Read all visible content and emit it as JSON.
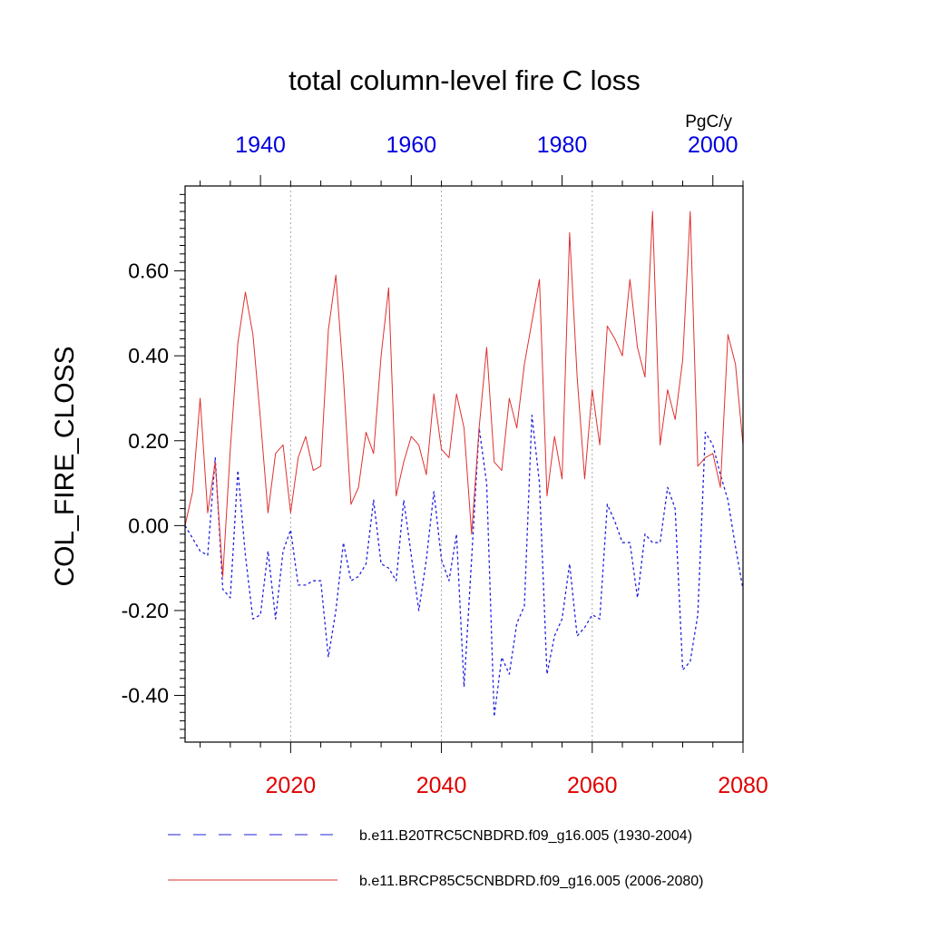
{
  "chart_data": {
    "type": "line",
    "title": "total column-level fire C loss",
    "units": "PgC/y",
    "ylabel": "COL_FIRE_CLOSS",
    "ylim": [
      -0.51,
      0.8
    ],
    "yticks": [
      -0.4,
      -0.2,
      0.0,
      0.2,
      0.4,
      0.6
    ],
    "ytick_labels": [
      "-0.40",
      "-0.20",
      "0.00",
      "0.20",
      "0.40",
      "0.60"
    ],
    "grid": "vertical dotted at bottom-axis major ticks",
    "bottom_axis": {
      "range": [
        2006,
        2080
      ],
      "ticks": [
        2020,
        2040,
        2060,
        2080
      ],
      "tick_labels": [
        "2020",
        "2040",
        "2060",
        "2080"
      ],
      "color": "#e00000"
    },
    "top_axis": {
      "range": [
        1930,
        2004
      ],
      "ticks": [
        1940,
        1960,
        1980,
        2000
      ],
      "tick_labels": [
        "1940",
        "1960",
        "1980",
        "2000"
      ],
      "color": "#0000e0"
    },
    "series": [
      {
        "name": "b.e11.B20TRC5CNBDRD.f09_g16.005 (1930-2004)",
        "axis": "top",
        "color": "#2020e0",
        "dash": "dashed",
        "x_start": 1930,
        "values": [
          0.0,
          -0.03,
          -0.06,
          -0.07,
          0.16,
          -0.15,
          -0.17,
          0.13,
          -0.07,
          -0.22,
          -0.21,
          -0.06,
          -0.22,
          -0.06,
          -0.01,
          -0.14,
          -0.14,
          -0.13,
          -0.13,
          -0.31,
          -0.2,
          -0.04,
          -0.13,
          -0.12,
          -0.09,
          0.06,
          -0.09,
          -0.1,
          -0.13,
          0.06,
          -0.07,
          -0.2,
          -0.08,
          0.08,
          -0.08,
          -0.13,
          -0.02,
          -0.38,
          -0.08,
          0.23,
          0.1,
          -0.45,
          -0.31,
          -0.35,
          -0.23,
          -0.19,
          0.26,
          0.1,
          -0.35,
          -0.26,
          -0.22,
          -0.09,
          -0.26,
          -0.24,
          -0.21,
          -0.22,
          0.05,
          0.01,
          -0.04,
          -0.04,
          -0.17,
          -0.02,
          -0.04,
          -0.04,
          0.09,
          0.04,
          -0.34,
          -0.32,
          -0.21,
          0.22,
          0.19,
          0.12,
          0.06,
          -0.05,
          -0.15
        ]
      },
      {
        "name": "b.e11.BRCP85C5CNBDRD.f09_g16.005 (2006-2080)",
        "axis": "bottom",
        "color": "#e03030",
        "dash": "solid",
        "x_start": 2006,
        "values": [
          0.0,
          0.08,
          0.3,
          0.03,
          0.15,
          -0.12,
          0.18,
          0.43,
          0.55,
          0.45,
          0.25,
          0.03,
          0.17,
          0.19,
          0.03,
          0.16,
          0.21,
          0.13,
          0.14,
          0.46,
          0.59,
          0.35,
          0.05,
          0.09,
          0.22,
          0.17,
          0.4,
          0.56,
          0.07,
          0.15,
          0.21,
          0.19,
          0.12,
          0.31,
          0.18,
          0.16,
          0.31,
          0.23,
          -0.02,
          0.23,
          0.42,
          0.15,
          0.13,
          0.3,
          0.23,
          0.38,
          0.48,
          0.58,
          0.07,
          0.21,
          0.11,
          0.69,
          0.35,
          0.11,
          0.32,
          0.19,
          0.47,
          0.44,
          0.4,
          0.58,
          0.42,
          0.35,
          0.74,
          0.19,
          0.32,
          0.25,
          0.39,
          0.74,
          0.14,
          0.16,
          0.17,
          0.09,
          0.45,
          0.38,
          0.19
        ]
      }
    ]
  }
}
